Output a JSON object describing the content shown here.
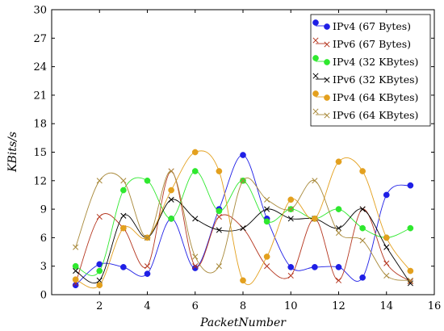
{
  "chart_data": {
    "type": "line",
    "title": "",
    "xlabel": "PacketNumber",
    "ylabel": "KBits/s",
    "xlim": [
      0,
      16
    ],
    "ylim": [
      0,
      30
    ],
    "x_ticks": [
      2,
      4,
      6,
      8,
      10,
      12,
      14,
      16
    ],
    "y_ticks": [
      0,
      3,
      6,
      9,
      12,
      15,
      18,
      21,
      24,
      27,
      30
    ],
    "grid": false,
    "legend_position": "top-right",
    "smooth": true,
    "x": [
      1,
      2,
      3,
      4,
      5,
      6,
      7,
      8,
      9,
      10,
      11,
      12,
      13,
      14,
      15
    ],
    "series": [
      {
        "name": "IPv4 (67 Bytes)",
        "color": "#1f1fe6",
        "marker": "circle",
        "values": [
          1.0,
          3.2,
          2.9,
          2.2,
          8.0,
          2.8,
          9.0,
          14.7,
          8.0,
          2.9,
          2.9,
          2.9,
          1.8,
          10.5,
          11.5
        ]
      },
      {
        "name": "IPv6 (67 Bytes)",
        "color": "#b5361f",
        "marker": "x",
        "values": [
          1.2,
          8.2,
          7.0,
          3.0,
          13.0,
          3.0,
          8.2,
          7.0,
          3.0,
          2.0,
          8.0,
          1.5,
          9.0,
          3.3,
          1.4
        ]
      },
      {
        "name": "IPv4 (32 KBytes)",
        "color": "#2ee82e",
        "marker": "circle",
        "values": [
          3.0,
          2.5,
          11.0,
          12.0,
          8.0,
          13.0,
          8.8,
          12.0,
          7.7,
          9.0,
          8.0,
          9.0,
          7.0,
          6.0,
          7.0
        ]
      },
      {
        "name": "IPv6 (32 KBytes)",
        "color": "#000000",
        "marker": "x",
        "values": [
          2.5,
          1.5,
          8.3,
          6.0,
          10.0,
          8.0,
          6.8,
          7.0,
          9.0,
          8.0,
          8.0,
          7.0,
          9.0,
          5.0,
          1.2
        ]
      },
      {
        "name": "IPv4 (64 KBytes)",
        "color": "#e3a01e",
        "marker": "circle",
        "values": [
          1.6,
          1.0,
          7.0,
          6.0,
          11.0,
          15.0,
          13.0,
          1.5,
          4.0,
          10.0,
          8.0,
          14.0,
          13.0,
          6.0,
          2.5
        ]
      },
      {
        "name": "IPv6 (64 KBytes)",
        "color": "#a8893a",
        "marker": "x",
        "values": [
          5.0,
          12.0,
          12.0,
          6.0,
          13.0,
          4.0,
          3.0,
          12.0,
          10.0,
          9.0,
          12.0,
          6.5,
          5.7,
          2.0,
          1.5
        ]
      }
    ]
  }
}
